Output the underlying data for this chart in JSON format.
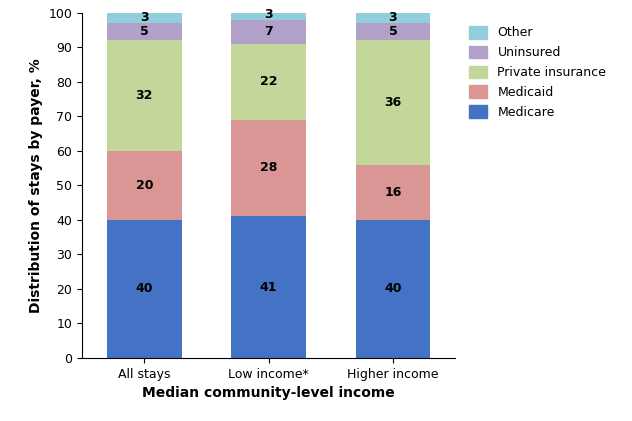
{
  "categories": [
    "All stays",
    "Low income*",
    "Higher income"
  ],
  "series": [
    {
      "label": "Medicare",
      "values": [
        40,
        41,
        40
      ],
      "color": "#4472C4"
    },
    {
      "label": "Medicaid",
      "values": [
        20,
        28,
        16
      ],
      "color": "#DA9694"
    },
    {
      "label": "Private insurance",
      "values": [
        32,
        22,
        36
      ],
      "color": "#C4D79B"
    },
    {
      "label": "Uninsured",
      "values": [
        5,
        7,
        5
      ],
      "color": "#B1A0C7"
    },
    {
      "label": "Other",
      "values": [
        3,
        3,
        3
      ],
      "color": "#92CDDC"
    }
  ],
  "xlabel": "Median community-level income",
  "ylabel": "Distribution of stays by payer, %",
  "ylim": [
    0,
    100
  ],
  "yticks": [
    0,
    10,
    20,
    30,
    40,
    50,
    60,
    70,
    80,
    90,
    100
  ],
  "bar_width": 0.6,
  "label_fontsize": 9,
  "tick_fontsize": 9,
  "axis_label_fontsize": 10,
  "legend_fontsize": 9,
  "fig_width": 6.32,
  "fig_height": 4.21,
  "dpi": 100
}
